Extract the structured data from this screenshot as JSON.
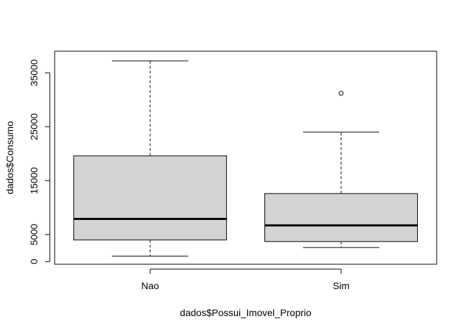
{
  "chart_data": {
    "type": "boxplot",
    "xlabel": "dados$Possui_Imovel_Proprio",
    "ylabel": "dados$Consumo",
    "categories": [
      "Nao",
      "Sim"
    ],
    "boxes": [
      {
        "category": "Nao",
        "whisker_low": 1000,
        "q1": 4000,
        "median": 7900,
        "q3": 19600,
        "whisker_high": 37200,
        "outliers": []
      },
      {
        "category": "Sim",
        "whisker_low": 2600,
        "q1": 3700,
        "median": 6700,
        "q3": 12600,
        "whisker_high": 24000,
        "outliers": [
          31200
        ]
      }
    ],
    "yticks": [
      0,
      5000,
      15000,
      25000,
      35000
    ],
    "yticks_labels": [
      "0",
      "5000",
      "15000",
      "25000",
      "35000"
    ],
    "ylim": [
      -500,
      39000
    ],
    "box_fill": "#d3d3d3",
    "grid": false
  }
}
